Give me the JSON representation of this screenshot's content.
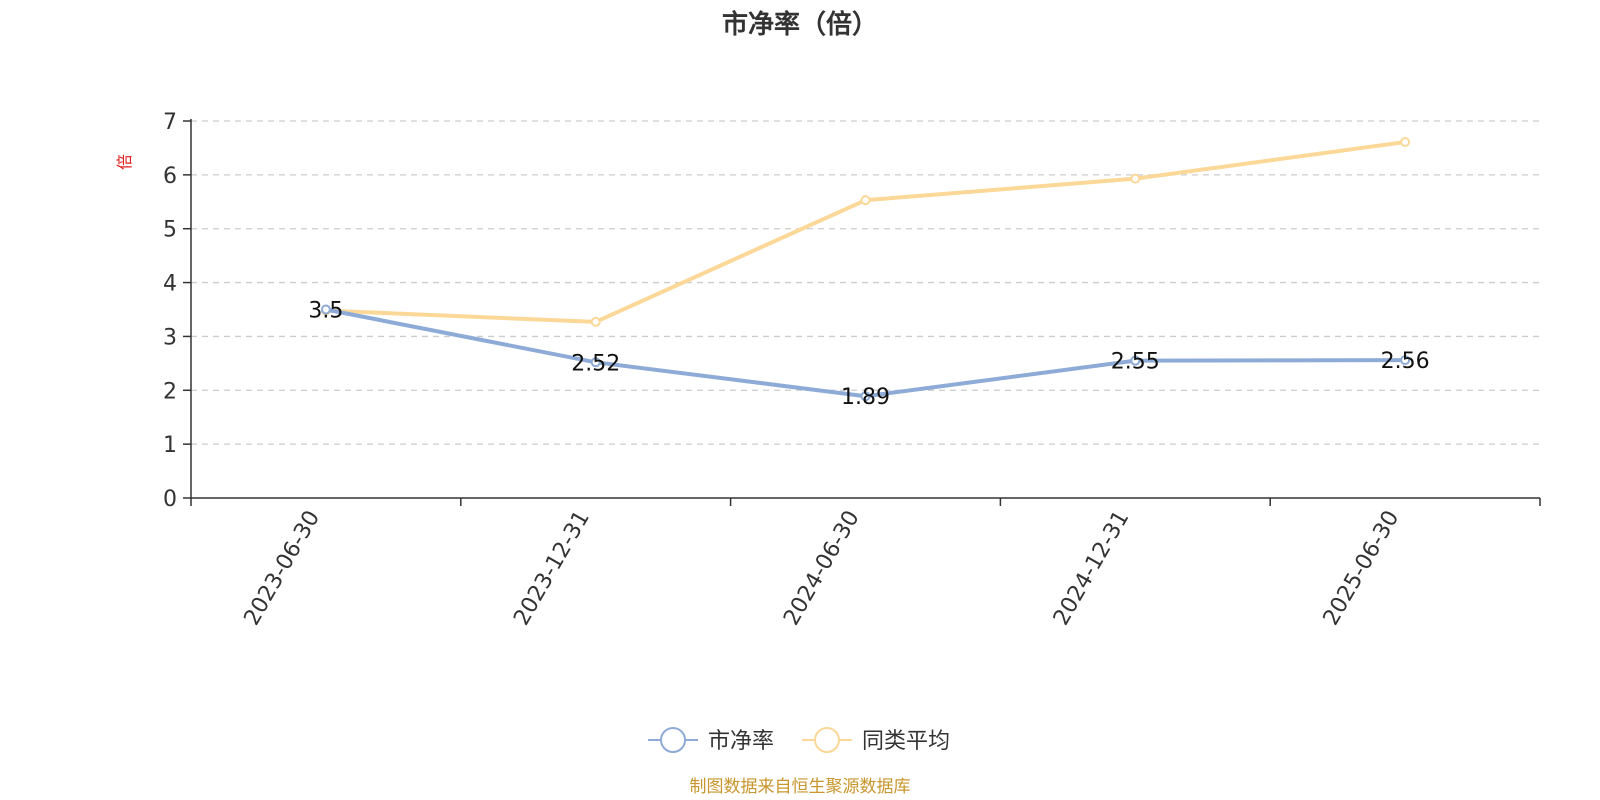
{
  "chart_data": {
    "type": "line",
    "title": "市净率（倍）",
    "ylabel": "倍",
    "xlabel": "",
    "categories": [
      "2023-06-30",
      "2023-12-31",
      "2024-06-30",
      "2024-12-31",
      "2025-06-30"
    ],
    "ylim": [
      0,
      7
    ],
    "yticks": [
      0,
      1,
      2,
      3,
      4,
      5,
      6,
      7
    ],
    "grid": true,
    "legend_position": "bottom-center",
    "series": [
      {
        "name": "市净率",
        "values": [
          3.5,
          2.52,
          1.89,
          2.55,
          2.56
        ],
        "color": "#8eabd8",
        "show_labels": true,
        "labels": [
          "3.5",
          "2.52",
          "1.89",
          "2.55",
          "2.56"
        ]
      },
      {
        "name": "同类平均",
        "values": [
          3.48,
          3.27,
          5.53,
          5.93,
          6.61
        ],
        "color": "#fbd898",
        "show_labels": false
      }
    ],
    "source": "制图数据来自恒生聚源数据库"
  },
  "colors": {
    "axis": "#333333",
    "grid": "#cccccc",
    "ylabel": "#e02020",
    "source": "#c8962c"
  }
}
